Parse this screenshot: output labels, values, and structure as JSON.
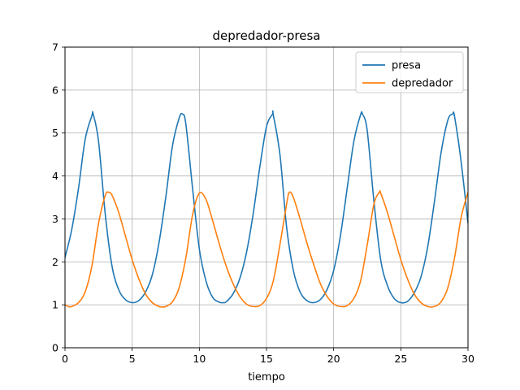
{
  "chart_data": {
    "type": "line",
    "title": "depredador-presa",
    "xlabel": "tiempo",
    "ylabel": "",
    "xlim": [
      0,
      30
    ],
    "ylim": [
      0,
      7
    ],
    "xticks": [
      0,
      5,
      10,
      15,
      20,
      25,
      30
    ],
    "yticks": [
      0,
      1,
      2,
      3,
      4,
      5,
      6,
      7
    ],
    "grid": true,
    "legend_position": "top-right",
    "series": [
      {
        "name": "presa",
        "color": "#1f77b4",
        "x": [
          0,
          0.5,
          1.0,
          1.5,
          2.0,
          2.1,
          2.5,
          3.0,
          3.5,
          4.0,
          4.5,
          5.0,
          5.5,
          6.0,
          6.5,
          7.0,
          7.5,
          8.0,
          8.5,
          8.75,
          9.0,
          9.5,
          10.0,
          10.5,
          11.0,
          11.5,
          11.8,
          12.0,
          12.5,
          13.0,
          13.5,
          14.0,
          14.5,
          15.0,
          15.45,
          15.5,
          16.0,
          16.5,
          17.0,
          17.5,
          18.0,
          18.5,
          19.0,
          19.5,
          20.0,
          20.5,
          21.0,
          21.5,
          22.0,
          22.15,
          22.5,
          23.0,
          23.5,
          24.0,
          24.5,
          25.0,
          25.5,
          26.0,
          26.5,
          27.0,
          27.5,
          28.0,
          28.5,
          28.85,
          29.0,
          29.5,
          30.0
        ],
        "y": [
          2.1,
          2.75,
          3.7,
          4.85,
          5.4,
          5.44,
          4.8,
          3.1,
          1.9,
          1.35,
          1.12,
          1.05,
          1.1,
          1.3,
          1.7,
          2.45,
          3.5,
          4.7,
          5.35,
          5.44,
          5.2,
          3.7,
          2.3,
          1.55,
          1.17,
          1.06,
          1.05,
          1.07,
          1.25,
          1.6,
          2.2,
          3.1,
          4.2,
          5.15,
          5.44,
          5.43,
          4.5,
          2.8,
          1.8,
          1.3,
          1.1,
          1.05,
          1.12,
          1.35,
          1.8,
          2.6,
          3.7,
          4.8,
          5.42,
          5.44,
          5.05,
          3.4,
          2.05,
          1.45,
          1.15,
          1.05,
          1.08,
          1.28,
          1.65,
          2.35,
          3.4,
          4.55,
          5.3,
          5.44,
          5.38,
          4.3,
          2.9
        ]
      },
      {
        "name": "depredador",
        "color": "#ff7f0e",
        "x": [
          0,
          0.25,
          0.5,
          1.0,
          1.5,
          2.0,
          2.5,
          3.0,
          3.25,
          3.5,
          4.0,
          4.5,
          5.0,
          5.5,
          6.0,
          6.5,
          7.0,
          7.25,
          7.5,
          8.0,
          8.5,
          9.0,
          9.5,
          10.0,
          10.5,
          11.0,
          11.5,
          12.0,
          12.5,
          13.0,
          13.5,
          14.0,
          14.5,
          15.0,
          15.5,
          16.0,
          16.5,
          16.7,
          17.0,
          17.5,
          18.0,
          18.5,
          19.0,
          19.5,
          20.0,
          20.5,
          21.0,
          21.5,
          22.0,
          22.5,
          23.0,
          23.4,
          23.5,
          24.0,
          24.5,
          25.0,
          25.5,
          26.0,
          26.5,
          27.0,
          27.5,
          28.0,
          28.5,
          29.0,
          29.5,
          30.0
        ],
        "y": [
          1.0,
          0.96,
          0.96,
          1.05,
          1.3,
          1.9,
          2.9,
          3.55,
          3.62,
          3.55,
          3.15,
          2.6,
          2.05,
          1.6,
          1.25,
          1.05,
          0.96,
          0.95,
          0.96,
          1.07,
          1.4,
          2.1,
          3.1,
          3.6,
          3.45,
          2.95,
          2.4,
          1.9,
          1.5,
          1.2,
          1.02,
          0.96,
          0.98,
          1.15,
          1.55,
          2.4,
          3.35,
          3.62,
          3.5,
          3.0,
          2.45,
          1.95,
          1.5,
          1.2,
          1.02,
          0.96,
          0.98,
          1.15,
          1.55,
          2.4,
          3.35,
          3.62,
          3.6,
          3.15,
          2.6,
          2.05,
          1.6,
          1.25,
          1.05,
          0.96,
          0.96,
          1.07,
          1.4,
          2.1,
          3.05,
          3.62
        ]
      }
    ]
  }
}
